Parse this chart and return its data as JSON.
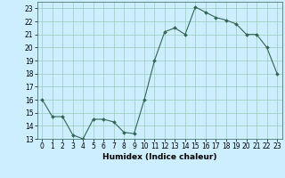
{
  "x": [
    0,
    1,
    2,
    3,
    4,
    5,
    6,
    7,
    8,
    9,
    10,
    11,
    12,
    13,
    14,
    15,
    16,
    17,
    18,
    19,
    20,
    21,
    22,
    23
  ],
  "y": [
    16.0,
    14.7,
    14.7,
    13.3,
    13.0,
    14.5,
    14.5,
    14.3,
    13.5,
    13.4,
    16.0,
    19.0,
    21.2,
    21.5,
    21.0,
    23.1,
    22.7,
    22.3,
    22.1,
    21.8,
    21.0,
    21.0,
    20.0,
    18.0
  ],
  "title": "",
  "xlabel": "Humidex (Indice chaleur)",
  "ylabel": "",
  "xlim": [
    -0.5,
    23.5
  ],
  "ylim": [
    13,
    23.5
  ],
  "yticks": [
    13,
    14,
    15,
    16,
    17,
    18,
    19,
    20,
    21,
    22,
    23
  ],
  "xticks": [
    0,
    1,
    2,
    3,
    4,
    5,
    6,
    7,
    8,
    9,
    10,
    11,
    12,
    13,
    14,
    15,
    16,
    17,
    18,
    19,
    20,
    21,
    22,
    23
  ],
  "line_color": "#336655",
  "marker_color": "#336655",
  "bg_color": "#cceeff",
  "grid_color": "#99ccbb",
  "label_fontsize": 6.5,
  "tick_fontsize": 5.5
}
